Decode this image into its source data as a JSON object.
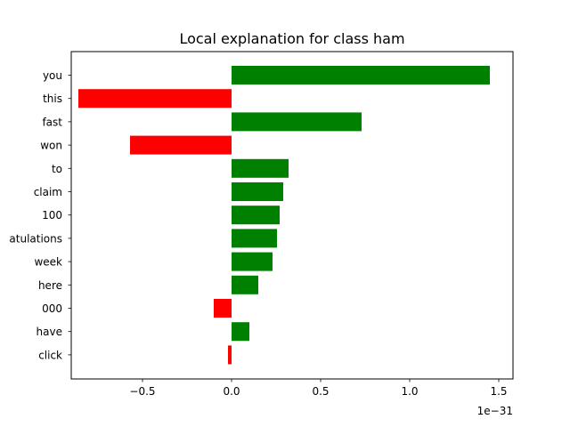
{
  "chart_data": {
    "type": "bar",
    "orientation": "horizontal",
    "title": "Local explanation for class ham",
    "xlabel": "",
    "ylabel": "",
    "x_scale_label": "1e−31",
    "xlim": [
      -0.9,
      1.58
    ],
    "xticks": [
      -0.5,
      0.0,
      0.5,
      1.0,
      1.5
    ],
    "xtick_labels": [
      "−0.5",
      "0.0",
      "0.5",
      "1.0",
      "1.5"
    ],
    "categories": [
      "you",
      "this",
      "fast",
      "won",
      "to",
      "claim",
      "100",
      "congratulations",
      "week",
      "here",
      "000",
      "have",
      "click"
    ],
    "category_labels_shown": [
      "you",
      "this",
      "fast",
      "won",
      "to",
      "claim",
      "100",
      "atulations",
      "week",
      "here",
      "000",
      "have",
      "click"
    ],
    "values": [
      1.45,
      -0.86,
      0.73,
      -0.57,
      0.32,
      0.29,
      0.27,
      0.255,
      0.23,
      0.15,
      -0.1,
      0.1,
      -0.02
    ],
    "colors": {
      "positive": "#008000",
      "negative": "#ff0000"
    },
    "grid": false,
    "legend": "none"
  }
}
